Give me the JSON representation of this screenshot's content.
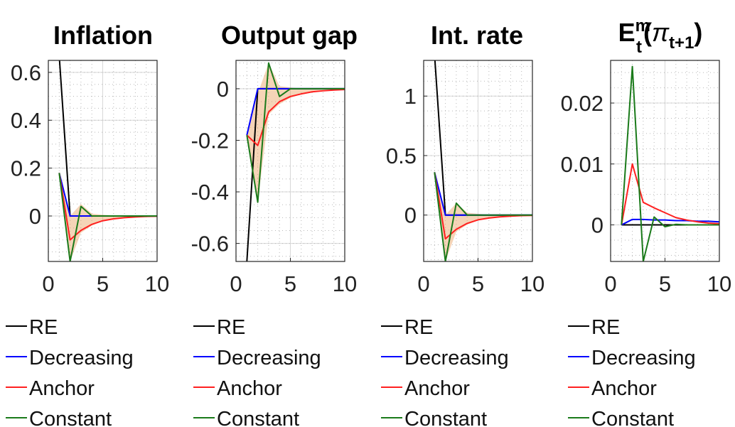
{
  "legend": [
    "RE",
    "Decreasing",
    "Anchor",
    "Constant"
  ],
  "colors": {
    "RE": "#000000",
    "Decreasing": "#0000ff",
    "Anchor": "#ff2020",
    "Constant": "#1a7a1a",
    "band_orange": "#e8a060",
    "band_red": "#f08080"
  },
  "chart_data": [
    {
      "type": "line",
      "title": "Inflation",
      "x": [
        1,
        2,
        3,
        4,
        5,
        6,
        7,
        8,
        9,
        10
      ],
      "xlim": [
        0,
        10
      ],
      "ylim": [
        -0.19,
        0.65
      ],
      "xticks": [
        0,
        5,
        10
      ],
      "yticks": [
        0,
        0.2,
        0.4,
        0.6
      ],
      "ytick_labels": [
        "0",
        "0.2",
        "0.4",
        "0.6"
      ],
      "grid": true,
      "legend_position": "below",
      "series": [
        {
          "name": "RE",
          "values": [
            0.67,
            0.0,
            0.0,
            0.0,
            0.0,
            0.0,
            0.0,
            0.0,
            0.0,
            0.0
          ]
        },
        {
          "name": "Decreasing",
          "values": [
            0.18,
            0.0,
            0.0,
            0.0,
            0.0,
            0.0,
            0.0,
            0.0,
            0.0,
            0.0
          ]
        },
        {
          "name": "Anchor",
          "values": [
            0.18,
            -0.1,
            -0.06,
            -0.035,
            -0.02,
            -0.012,
            -0.007,
            -0.004,
            -0.002,
            -0.001
          ]
        },
        {
          "name": "Constant",
          "values": [
            0.18,
            -0.19,
            0.04,
            0.0,
            0.0,
            0.0,
            0.0,
            0.0,
            0.0,
            0.0
          ]
        }
      ],
      "bands": [
        {
          "upper": [
            0.18,
            0.0,
            0.05,
            0.01,
            0.005,
            0.002,
            0.0,
            0.0,
            0.0,
            0.0
          ],
          "lower": [
            0.18,
            -0.19,
            -0.07,
            -0.04,
            -0.02,
            -0.012,
            -0.007,
            -0.004,
            -0.002,
            -0.001
          ]
        }
      ]
    },
    {
      "type": "line",
      "title": "Output gap",
      "x": [
        1,
        2,
        3,
        4,
        5,
        6,
        7,
        8,
        9,
        10
      ],
      "xlim": [
        0,
        10
      ],
      "ylim": [
        -0.67,
        0.11
      ],
      "xticks": [
        0,
        5,
        10
      ],
      "yticks": [
        -0.6,
        -0.4,
        -0.2,
        0
      ],
      "ytick_labels": [
        "-0.6",
        "-0.4",
        "-0.2",
        "0"
      ],
      "grid": true,
      "legend_position": "below",
      "series": [
        {
          "name": "RE",
          "values": [
            -0.67,
            0.0,
            0.0,
            0.0,
            0.0,
            0.0,
            0.0,
            0.0,
            0.0,
            0.0
          ]
        },
        {
          "name": "Decreasing",
          "values": [
            -0.18,
            0.0,
            0.0,
            0.0,
            0.0,
            0.0,
            0.0,
            0.0,
            0.0,
            0.0
          ]
        },
        {
          "name": "Anchor",
          "values": [
            -0.18,
            -0.22,
            -0.09,
            -0.05,
            -0.03,
            -0.02,
            -0.012,
            -0.008,
            -0.005,
            -0.003
          ]
        },
        {
          "name": "Constant",
          "values": [
            -0.18,
            -0.44,
            0.1,
            -0.03,
            0.0,
            0.0,
            0.0,
            0.0,
            0.0,
            0.0
          ]
        }
      ],
      "bands": [
        {
          "upper": [
            -0.18,
            -0.02,
            0.1,
            0.01,
            0.005,
            0.0,
            0.0,
            0.0,
            0.0,
            0.0
          ],
          "lower": [
            -0.18,
            -0.44,
            -0.1,
            -0.06,
            -0.035,
            -0.022,
            -0.014,
            -0.009,
            -0.006,
            -0.004
          ]
        }
      ]
    },
    {
      "type": "line",
      "title": "Int. rate",
      "x": [
        1,
        2,
        3,
        4,
        5,
        6,
        7,
        8,
        9,
        10
      ],
      "xlim": [
        0,
        10
      ],
      "ylim": [
        -0.39,
        1.3
      ],
      "xticks": [
        0,
        5,
        10
      ],
      "yticks": [
        0,
        0.5,
        1
      ],
      "ytick_labels": [
        "0",
        "0.5",
        "1"
      ],
      "grid": true,
      "legend_position": "below",
      "series": [
        {
          "name": "RE",
          "values": [
            1.35,
            0.0,
            0.0,
            0.0,
            0.0,
            0.0,
            0.0,
            0.0,
            0.0,
            0.0
          ]
        },
        {
          "name": "Decreasing",
          "values": [
            0.36,
            0.0,
            0.0,
            0.0,
            0.0,
            0.0,
            0.0,
            0.0,
            0.0,
            0.0
          ]
        },
        {
          "name": "Anchor",
          "values": [
            0.36,
            -0.2,
            -0.12,
            -0.07,
            -0.04,
            -0.025,
            -0.015,
            -0.009,
            -0.005,
            -0.003
          ]
        },
        {
          "name": "Constant",
          "values": [
            0.36,
            -0.39,
            0.1,
            0.0,
            0.0,
            0.0,
            0.0,
            0.0,
            0.0,
            0.0
          ]
        }
      ],
      "bands": [
        {
          "upper": [
            0.36,
            0.0,
            0.1,
            0.02,
            0.01,
            0.004,
            0.0,
            0.0,
            0.0,
            0.0
          ],
          "lower": [
            0.36,
            -0.39,
            -0.14,
            -0.08,
            -0.045,
            -0.028,
            -0.017,
            -0.01,
            -0.006,
            -0.004
          ]
        }
      ]
    },
    {
      "type": "line",
      "title_main": "E",
      "title_sup": "m",
      "title_sub": "t",
      "title_paren_open": "(",
      "title_pi": "π",
      "title_pi_sub": "t+1",
      "title_paren_close": ")",
      "x": [
        1,
        2,
        3,
        4,
        5,
        6,
        7,
        8,
        9,
        10
      ],
      "xlim": [
        0,
        10
      ],
      "ylim": [
        -0.006,
        0.027
      ],
      "xticks": [
        0,
        5,
        10
      ],
      "yticks": [
        0,
        0.01,
        0.02
      ],
      "ytick_labels": [
        "0",
        "0.01",
        "0.02"
      ],
      "grid": true,
      "legend_position": "below",
      "series": [
        {
          "name": "RE",
          "values": [
            0.0,
            0.0,
            0.0,
            0.0,
            0.0,
            0.0,
            0.0,
            0.0,
            0.0,
            0.0
          ]
        },
        {
          "name": "Decreasing",
          "values": [
            0.0,
            0.0009,
            0.0009,
            0.0008,
            0.0008,
            0.0007,
            0.0007,
            0.0006,
            0.0006,
            0.0005
          ]
        },
        {
          "name": "Anchor",
          "values": [
            0.0,
            0.01,
            0.0037,
            0.0028,
            0.002,
            0.0012,
            0.0008,
            0.0005,
            0.0003,
            0.0002
          ]
        },
        {
          "name": "Constant",
          "values": [
            0.0,
            0.026,
            -0.006,
            0.0013,
            -0.0003,
            0.0001,
            0.0,
            0.0,
            0.0,
            0.0
          ]
        }
      ],
      "bands": []
    }
  ]
}
